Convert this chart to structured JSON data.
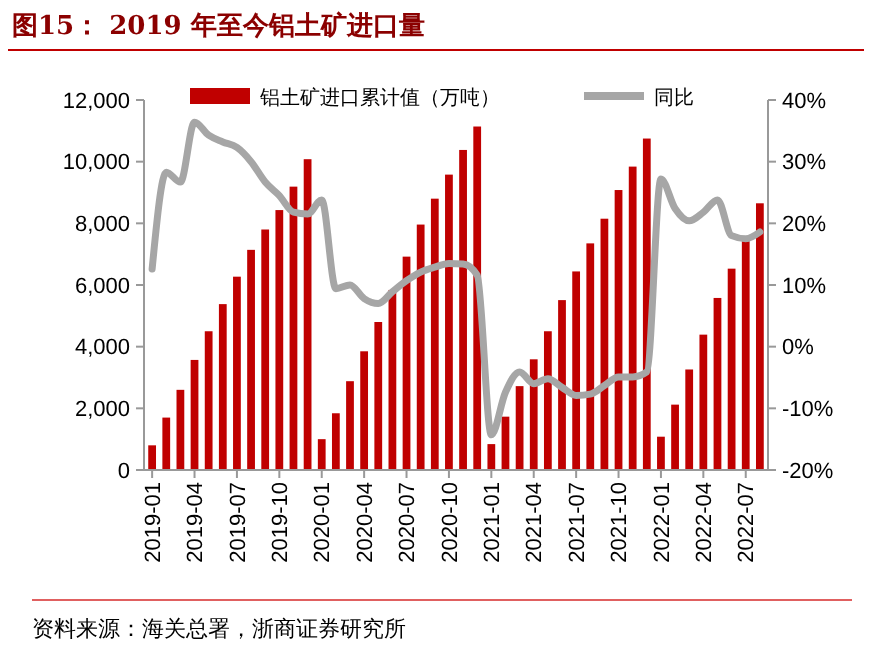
{
  "chart_data": {
    "type": "bar",
    "title": "图15： 2019 年至今铝土矿进口量",
    "annotations": [
      "资料来源：海关总署，浙商证券研究所"
    ],
    "categories": [
      "2019-01",
      null,
      null,
      "2019-04",
      null,
      null,
      "2019-07",
      null,
      null,
      "2019-10",
      null,
      null,
      "2020-01",
      null,
      null,
      "2020-04",
      null,
      null,
      "2020-07",
      null,
      null,
      "2020-10",
      null,
      null,
      "2021-01",
      null,
      null,
      "2021-04",
      null,
      null,
      "2021-07",
      null,
      null,
      "2021-10",
      null,
      null,
      "2022-01",
      null,
      null,
      "2022-04",
      null,
      null,
      "2022-07",
      null
    ],
    "series": [
      {
        "name": "铝土矿进口累计值（万吨）",
        "color": "#c00000",
        "values": [
          800,
          1700,
          2600,
          3570,
          4500,
          5380,
          6270,
          7140,
          7800,
          8430,
          9190,
          10080,
          1000,
          1840,
          2880,
          3850,
          4800,
          5840,
          6920,
          7960,
          8800,
          9580,
          10380,
          11140,
          840,
          1730,
          2720,
          3590,
          4500,
          5510,
          6440,
          7350,
          8150,
          9080,
          9840,
          10750,
          1080,
          2120,
          3260,
          4390,
          5580,
          6530,
          7420,
          8650
        ]
      },
      {
        "name": "同比",
        "type": "line",
        "axis": "y2",
        "color": "#a6a6a6",
        "values": [
          12.6,
          28.3,
          26.7,
          36.4,
          34.3,
          33.2,
          32.3,
          30,
          26.7,
          24.5,
          21.8,
          21.5,
          23.8,
          9.4,
          10,
          7.8,
          7,
          8.9,
          10.7,
          12.1,
          12.9,
          13.5,
          13.4,
          11.6,
          -14.3,
          -7.4,
          -4.1,
          -6,
          -5.2,
          -6.6,
          -7.9,
          -7.7,
          -6.3,
          -4.9,
          -4.9,
          -4.1,
          27.2,
          22.4,
          20.4,
          21.8,
          23.8,
          18,
          17.5,
          18.6
        ]
      }
    ],
    "ylim": [
      0,
      12000
    ],
    "yticks": [
      {
        "value": 0,
        "label": "0"
      },
      {
        "value": 2000,
        "label": "2,000"
      },
      {
        "value": 4000,
        "label": "4,000"
      },
      {
        "value": 6000,
        "label": "6,000"
      },
      {
        "value": 8000,
        "label": "8,000"
      },
      {
        "value": 10000,
        "label": "10,000"
      },
      {
        "value": 12000,
        "label": "12,000"
      }
    ],
    "y2lim": [
      -20,
      40
    ],
    "y2ticks": [
      {
        "value": -20,
        "label": "-20%"
      },
      {
        "value": -10,
        "label": "-10%"
      },
      {
        "value": 0,
        "label": "0%"
      },
      {
        "value": 10,
        "label": "10%"
      },
      {
        "value": 20,
        "label": "20%"
      },
      {
        "value": 30,
        "label": "30%"
      },
      {
        "value": 40,
        "label": "40%"
      }
    ],
    "legend": "top",
    "grid": false
  }
}
